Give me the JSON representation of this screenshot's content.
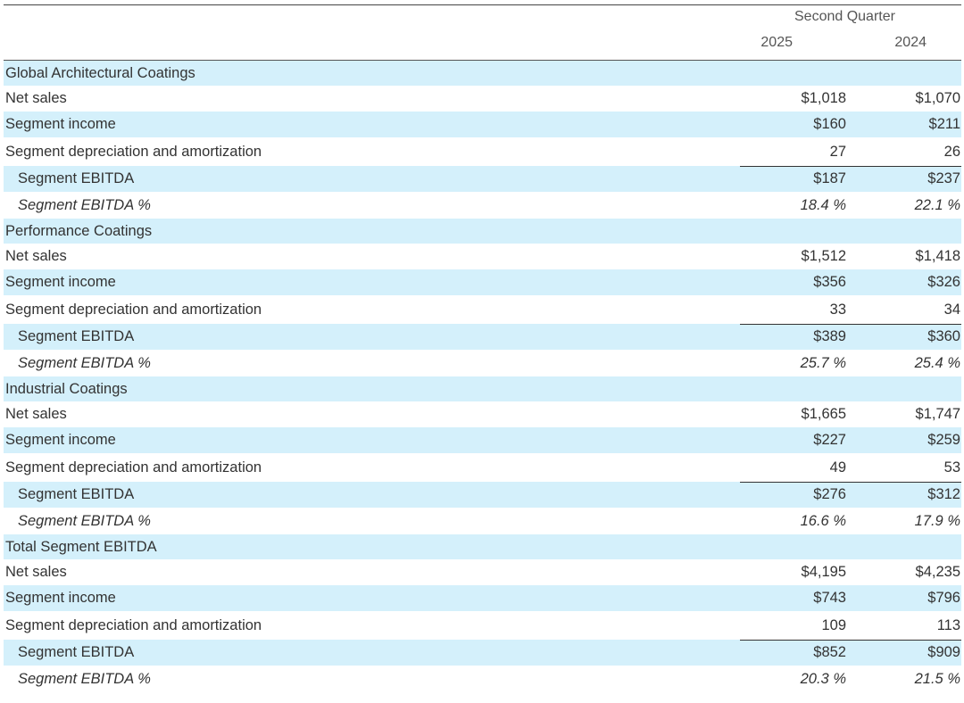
{
  "header": {
    "period": "Second Quarter",
    "years": [
      "2025",
      "2024"
    ]
  },
  "colors": {
    "row_shade": "#d4f0fb",
    "text": "#333333"
  },
  "segments": [
    {
      "name": "Global Architectural Coatings",
      "rows": [
        {
          "label": "Net sales",
          "v2025": "$1,018",
          "v2024": "$1,070"
        },
        {
          "label": "Segment income",
          "v2025": "$160",
          "v2024": "$211"
        },
        {
          "label": "Segment depreciation and amortization",
          "v2025": "27",
          "v2024": "26"
        },
        {
          "label": "Segment EBITDA",
          "v2025": "$187",
          "v2024": "$237"
        },
        {
          "label": "Segment EBITDA %",
          "v2025": "18.4 %",
          "v2024": "22.1 %"
        }
      ]
    },
    {
      "name": "Performance Coatings",
      "rows": [
        {
          "label": "Net sales",
          "v2025": "$1,512",
          "v2024": "$1,418"
        },
        {
          "label": "Segment income",
          "v2025": "$356",
          "v2024": "$326"
        },
        {
          "label": "Segment depreciation and amortization",
          "v2025": "33",
          "v2024": "34"
        },
        {
          "label": "Segment EBITDA",
          "v2025": "$389",
          "v2024": "$360"
        },
        {
          "label": "Segment EBITDA %",
          "v2025": "25.7 %",
          "v2024": "25.4 %"
        }
      ]
    },
    {
      "name": "Industrial Coatings",
      "rows": [
        {
          "label": "Net sales",
          "v2025": "$1,665",
          "v2024": "$1,747"
        },
        {
          "label": "Segment income",
          "v2025": "$227",
          "v2024": "$259"
        },
        {
          "label": "Segment depreciation and amortization",
          "v2025": "49",
          "v2024": "53"
        },
        {
          "label": "Segment EBITDA",
          "v2025": "$276",
          "v2024": "$312"
        },
        {
          "label": "Segment EBITDA %",
          "v2025": "16.6 %",
          "v2024": "17.9 %"
        }
      ]
    },
    {
      "name": "Total Segment EBITDA",
      "rows": [
        {
          "label": "Net sales",
          "v2025": "$4,195",
          "v2024": "$4,235"
        },
        {
          "label": "Segment income",
          "v2025": "$743",
          "v2024": "$796"
        },
        {
          "label": "Segment depreciation and amortization",
          "v2025": "109",
          "v2024": "113"
        },
        {
          "label": "Segment EBITDA",
          "v2025": "$852",
          "v2024": "$909"
        },
        {
          "label": "Segment EBITDA %",
          "v2025": "20.3 %",
          "v2024": "21.5 %"
        }
      ]
    }
  ]
}
